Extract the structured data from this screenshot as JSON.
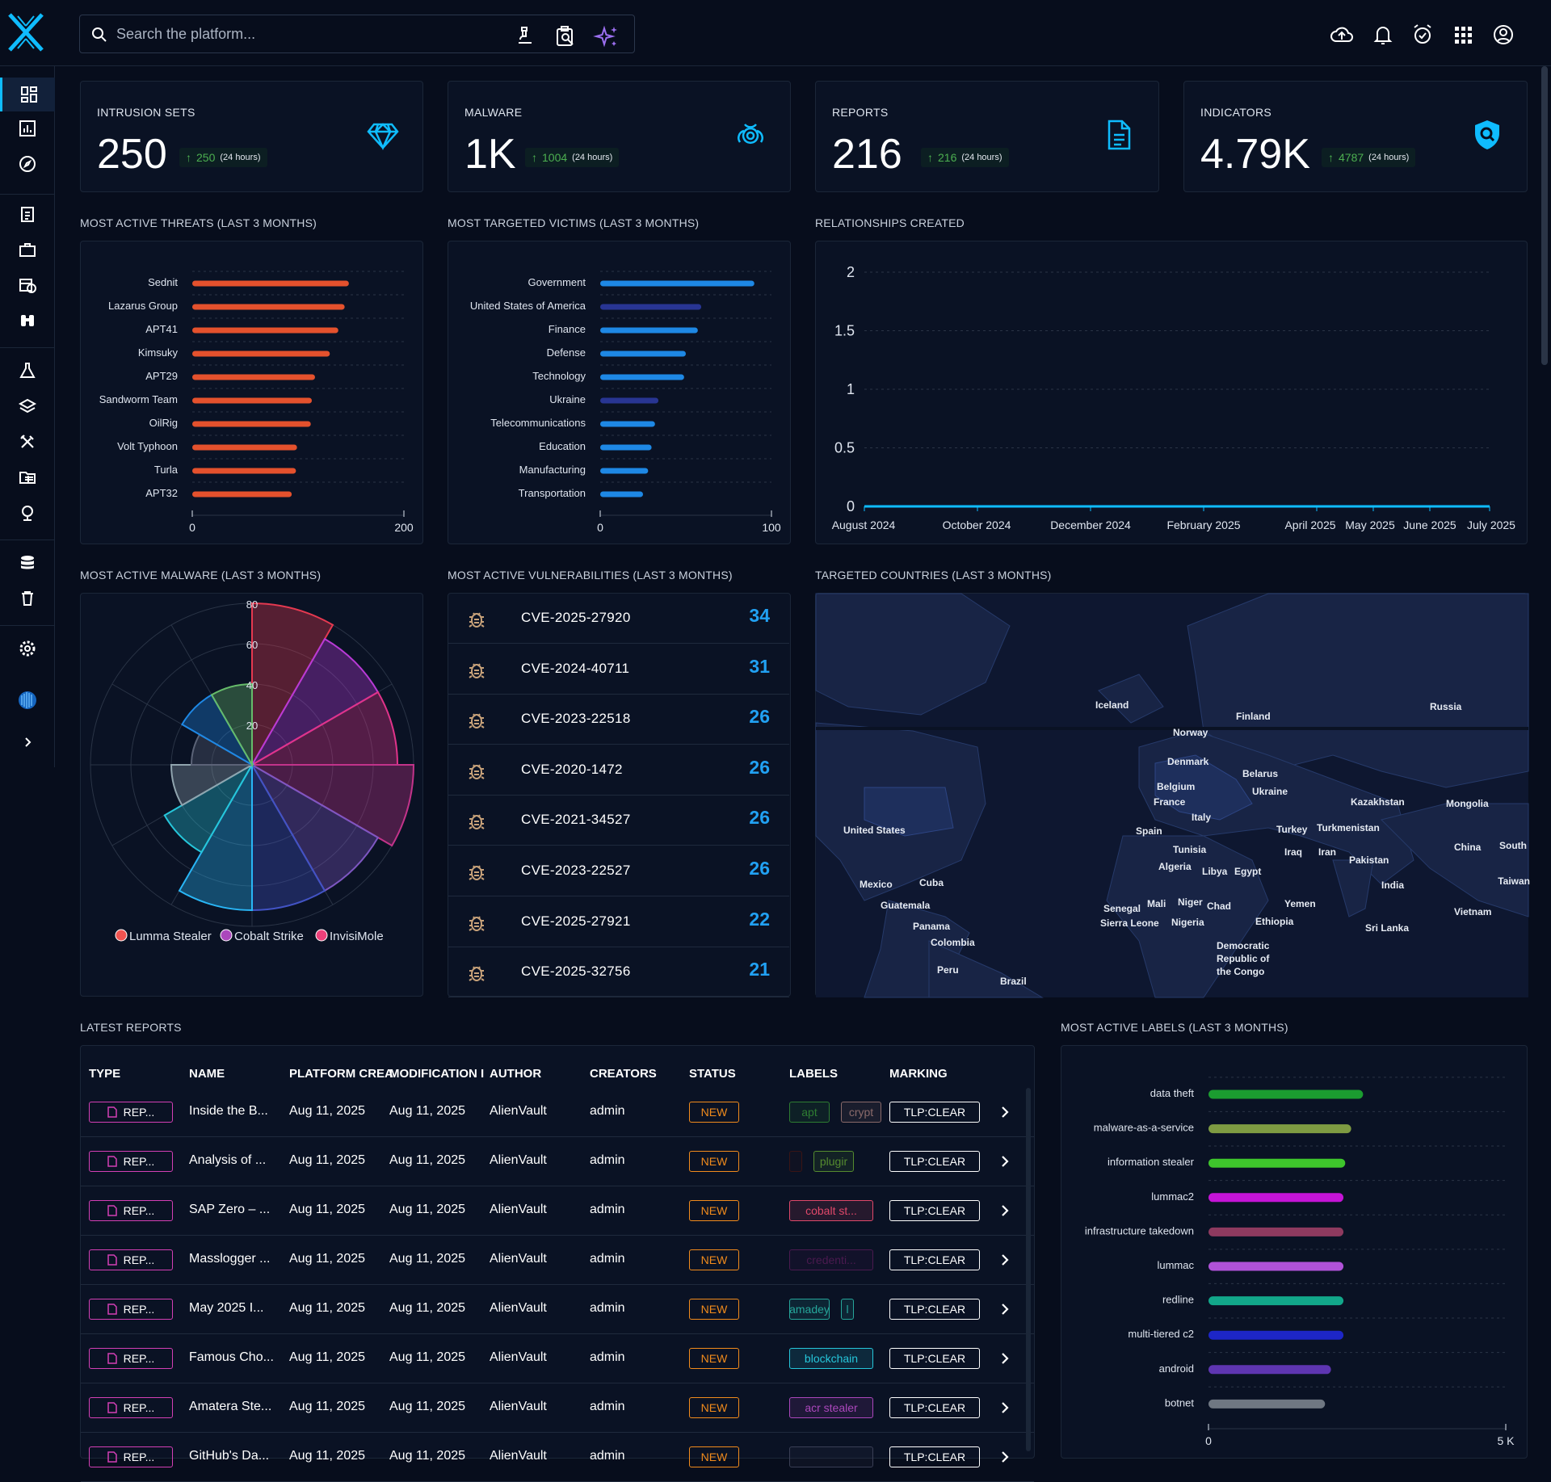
{
  "search": {
    "placeholder": "Search the platform..."
  },
  "kpis": [
    {
      "label": "INTRUSION SETS",
      "value": "250",
      "delta": "250",
      "period": "(24 hours)",
      "icon": "diamond-icon"
    },
    {
      "label": "MALWARE",
      "value": "1K",
      "delta": "1004",
      "period": "(24 hours)",
      "icon": "biohazard-icon"
    },
    {
      "label": "REPORTS",
      "value": "216",
      "delta": "216",
      "period": "(24 hours)",
      "icon": "document-icon"
    },
    {
      "label": "INDICATORS",
      "value": "4.79K",
      "delta": "4787",
      "period": "(24 hours)",
      "icon": "shield-search-icon"
    }
  ],
  "sections": {
    "threats": "MOST ACTIVE THREATS (LAST 3 MONTHS)",
    "victims": "MOST TARGETED VICTIMS (LAST 3 MONTHS)",
    "relationships": "RELATIONSHIPS CREATED",
    "malware": "MOST ACTIVE MALWARE (LAST 3 MONTHS)",
    "vulns": "MOST ACTIVE VULNERABILITIES (LAST 3 MONTHS)",
    "countries": "TARGETED COUNTRIES (LAST 3 MONTHS)",
    "reports": "LATEST REPORTS",
    "labels": "MOST ACTIVE LABELS (LAST 3 MONTHS)"
  },
  "chart_data": [
    {
      "id": "threats",
      "type": "bar",
      "orientation": "horizontal",
      "categories": [
        "Sednit",
        "Lazarus Group",
        "APT41",
        "Kimsuky",
        "APT29",
        "Sandworm Team",
        "OilRig",
        "Volt Typhoon",
        "Turla",
        "APT32"
      ],
      "values": [
        148,
        144,
        138,
        130,
        116,
        113,
        112,
        99,
        98,
        94
      ],
      "xlim": [
        0,
        200
      ],
      "xticks": [
        "0",
        "200"
      ],
      "color": "#e4512d",
      "grid": true
    },
    {
      "id": "victims",
      "type": "bar",
      "orientation": "horizontal",
      "categories": [
        "Government",
        "United States of America",
        "Finance",
        "Defense",
        "Technology",
        "Ukraine",
        "Telecommunications",
        "Education",
        "Manufacturing",
        "Transportation"
      ],
      "values": [
        90,
        59,
        57,
        50,
        49,
        34,
        32,
        30,
        28,
        25
      ],
      "colors": [
        "#1e88e5",
        "#283593",
        "#1e88e5",
        "#1e88e5",
        "#1e88e5",
        "#283593",
        "#1e88e5",
        "#1e88e5",
        "#1e88e5",
        "#1e88e5"
      ],
      "xlim": [
        0,
        100
      ],
      "xticks": [
        "0",
        "100"
      ],
      "grid": true
    },
    {
      "id": "relationships",
      "type": "line",
      "x": [
        "August 2024",
        "October 2024",
        "December 2024",
        "February 2025",
        "April 2025",
        "May 2025",
        "June 2025",
        "July 2025"
      ],
      "y": [
        0,
        0,
        0,
        0,
        0,
        0,
        0,
        0
      ],
      "yticks": [
        "0",
        "0.5",
        "1",
        "1.5",
        "2"
      ],
      "ylim": [
        0,
        2
      ],
      "color": "#0fbcff",
      "grid": true
    },
    {
      "id": "malware",
      "type": "polar-area",
      "rticks": [
        "20",
        "40",
        "60",
        "80"
      ],
      "rlim": [
        0,
        80
      ],
      "values": [
        80,
        72,
        72,
        80,
        72,
        72,
        72,
        50,
        40,
        30,
        40,
        40
      ],
      "colors": [
        "#e53950",
        "#b83ad6",
        "#e0338a",
        "#c2338a",
        "#7e57c2",
        "#4253c4",
        "#29b6f6",
        "#26c6da",
        "#90a4ae",
        "#5b6377",
        "#1e88e5",
        "#66bb6a"
      ],
      "legend": [
        "Lumma Stealer",
        "Cobalt Strike",
        "InvisiMole"
      ],
      "legend_colors": [
        "#ef5350",
        "#ab47bc",
        "#ec407a"
      ]
    },
    {
      "id": "labels",
      "type": "bar",
      "orientation": "horizontal",
      "categories": [
        "data theft",
        "malware-as-a-service",
        "information stealer",
        "lummac2",
        "infrastructure takedown",
        "lummac",
        "redline",
        "multi-tiered c2",
        "android",
        "botnet"
      ],
      "values": [
        2600,
        2400,
        2300,
        2270,
        2270,
        2270,
        2270,
        2270,
        2060,
        1960
      ],
      "colors": [
        "#1b9c30",
        "#7e9b42",
        "#3ec52c",
        "#c514d7",
        "#8e3a5f",
        "#b052d8",
        "#12a78a",
        "#1d26c7",
        "#5e35b1",
        "#6f7782"
      ],
      "xlim": [
        0,
        5000
      ],
      "xticks": [
        "0",
        "5 K"
      ],
      "grid": true
    }
  ],
  "vulnerabilities": [
    {
      "cve": "CVE-2025-27920",
      "count": "34"
    },
    {
      "cve": "CVE-2024-40711",
      "count": "31"
    },
    {
      "cve": "CVE-2023-22518",
      "count": "26"
    },
    {
      "cve": "CVE-2020-1472",
      "count": "26"
    },
    {
      "cve": "CVE-2021-34527",
      "count": "26"
    },
    {
      "cve": "CVE-2023-22527",
      "count": "26"
    },
    {
      "cve": "CVE-2025-27921",
      "count": "22"
    },
    {
      "cve": "CVE-2025-32756",
      "count": "21"
    }
  ],
  "map_countries": [
    "Iceland",
    "Finland",
    "Russia",
    "Norway",
    "Denmark",
    "Belarus",
    "Belgium",
    "Ukraine",
    "France",
    "Kazakhstan",
    "Mongolia",
    "Italy",
    "United States",
    "Spain",
    "Turkey",
    "Turkmenistan",
    "China",
    "South",
    "Tunisia",
    "Iraq",
    "Iran",
    "Pakistan",
    "Algeria",
    "Libya",
    "Egypt",
    "Mexico",
    "Cuba",
    "India",
    "Taiwan",
    "Guatemala",
    "Senegal",
    "Mali",
    "Niger",
    "Chad",
    "Yemen",
    "Vietnam",
    "Sierra Leone",
    "Nigeria",
    "Ethiopia",
    "Panama",
    "Sri Lanka",
    "Colombia",
    "Democratic",
    "Republic of",
    "the Congo",
    "Peru",
    "Brazil"
  ],
  "reports": {
    "columns": [
      "TYPE",
      "NAME",
      "PLATFORM CREA",
      "MODIFICATION I",
      "AUTHOR",
      "CREATORS",
      "STATUS",
      "LABELS",
      "MARKING"
    ],
    "rows": [
      {
        "type": "REP...",
        "name": "Inside the B...",
        "created": "Aug 11, 2025",
        "modified": "Aug 11, 2025",
        "author": "AlienVault",
        "creator": "admin",
        "status": "NEW",
        "labels": [
          {
            "text": "apt",
            "color": "#2e7d32"
          },
          {
            "text": "crypt",
            "color": "#8a6a6a"
          }
        ],
        "marking": "TLP:CLEAR"
      },
      {
        "type": "REP...",
        "name": "Analysis of ...",
        "created": "Aug 11, 2025",
        "modified": "Aug 11, 2025",
        "author": "AlienVault",
        "creator": "admin",
        "status": "NEW",
        "labels": [
          {
            "text": "",
            "color": "#3a1515"
          },
          {
            "text": "plugir",
            "color": "#558b2f"
          }
        ],
        "marking": "TLP:CLEAR"
      },
      {
        "type": "REP...",
        "name": "SAP Zero – ...",
        "created": "Aug 11, 2025",
        "modified": "Aug 11, 2025",
        "author": "AlienVault",
        "creator": "admin",
        "status": "NEW",
        "labels": [
          {
            "text": "cobalt st...",
            "color": "#e0486a"
          }
        ],
        "marking": "TLP:CLEAR"
      },
      {
        "type": "REP...",
        "name": "Masslogger ...",
        "created": "Aug 11, 2025",
        "modified": "Aug 11, 2025",
        "author": "AlienVault",
        "creator": "admin",
        "status": "NEW",
        "labels": [
          {
            "text": "credenti...",
            "color": "#4a1a4f"
          }
        ],
        "marking": "TLP:CLEAR"
      },
      {
        "type": "REP...",
        "name": "May 2025 I...",
        "created": "Aug 11, 2025",
        "modified": "Aug 11, 2025",
        "author": "AlienVault",
        "creator": "admin",
        "status": "NEW",
        "labels": [
          {
            "text": "amadey",
            "color": "#26a69a"
          },
          {
            "text": "l",
            "color": "#26a69a"
          }
        ],
        "marking": "TLP:CLEAR"
      },
      {
        "type": "REP...",
        "name": "Famous Cho...",
        "created": "Aug 11, 2025",
        "modified": "Aug 11, 2025",
        "author": "AlienVault",
        "creator": "admin",
        "status": "NEW",
        "labels": [
          {
            "text": "blockchain",
            "color": "#26c6da"
          }
        ],
        "marking": "TLP:CLEAR"
      },
      {
        "type": "REP...",
        "name": "Amatera Ste...",
        "created": "Aug 11, 2025",
        "modified": "Aug 11, 2025",
        "author": "AlienVault",
        "creator": "admin",
        "status": "NEW",
        "labels": [
          {
            "text": "acr stealer",
            "color": "#ab47bc"
          }
        ],
        "marking": "TLP:CLEAR"
      },
      {
        "type": "REP...",
        "name": "GitHub's Da...",
        "created": "Aug 11, 2025",
        "modified": "Aug 11, 2025",
        "author": "AlienVault",
        "creator": "admin",
        "status": "NEW",
        "labels": [
          {
            "text": "",
            "color": "#3a3f55"
          }
        ],
        "marking": "TLP:CLEAR"
      }
    ]
  },
  "colors": {
    "accent": "#0fbcff",
    "background": "#070d1c",
    "panel": "#0a1224",
    "positive": "#4caf50"
  }
}
